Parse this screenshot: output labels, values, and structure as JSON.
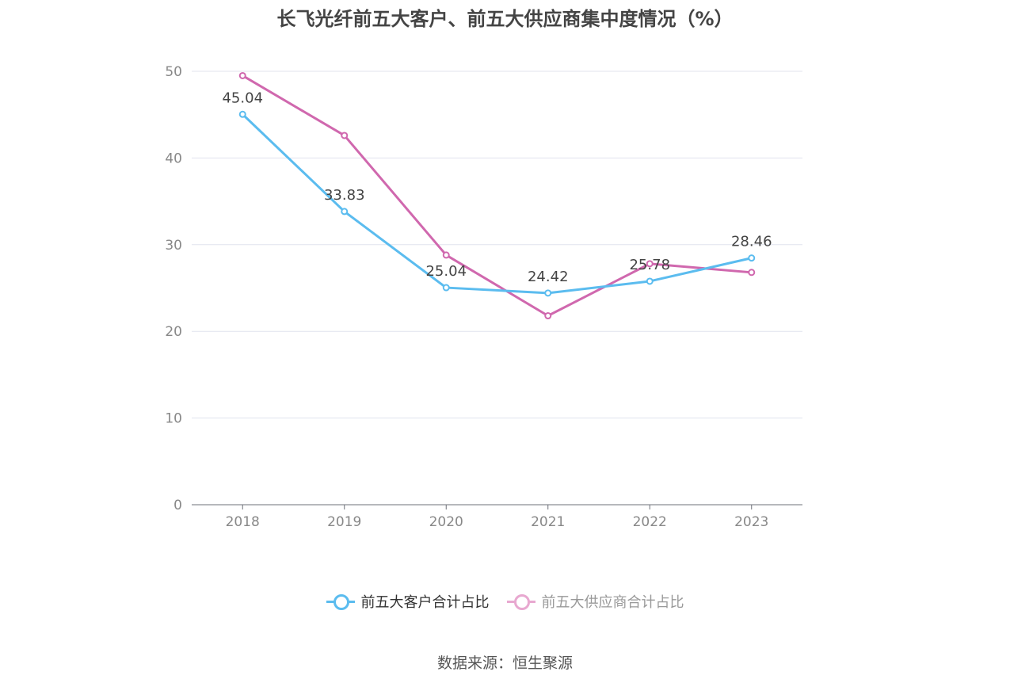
{
  "chart_data": {
    "type": "line",
    "title": "长飞光纤前五大客户、前五大供应商集中度情况（%）",
    "categories": [
      "2018",
      "2019",
      "2020",
      "2021",
      "2022",
      "2023"
    ],
    "ylim": [
      0,
      50
    ],
    "yticks": [
      "0",
      "10",
      "20",
      "30",
      "40",
      "50"
    ],
    "grid": true,
    "legend_position": "bottom",
    "series": [
      {
        "name": "前五大客户合计占比",
        "color": "#5bbcef",
        "values": [
          45.04,
          33.83,
          25.04,
          24.42,
          25.78,
          28.46
        ],
        "labels": [
          "45.04",
          "33.83",
          "25.04",
          "24.42",
          "25.78",
          "28.46"
        ]
      },
      {
        "name": "前五大供应商合计占比",
        "color": "#d068ae",
        "values": [
          49.5,
          42.6,
          28.8,
          21.8,
          27.8,
          26.8
        ]
      }
    ]
  },
  "legend": {
    "item1_label": "前五大客户合计占比",
    "item2_label": "前五大供应商合计占比",
    "item1_color": "#5bbcef",
    "item2_color": "#e8a8d0",
    "item2_text_color": "#999999"
  },
  "source": "数据来源：恒生聚源"
}
